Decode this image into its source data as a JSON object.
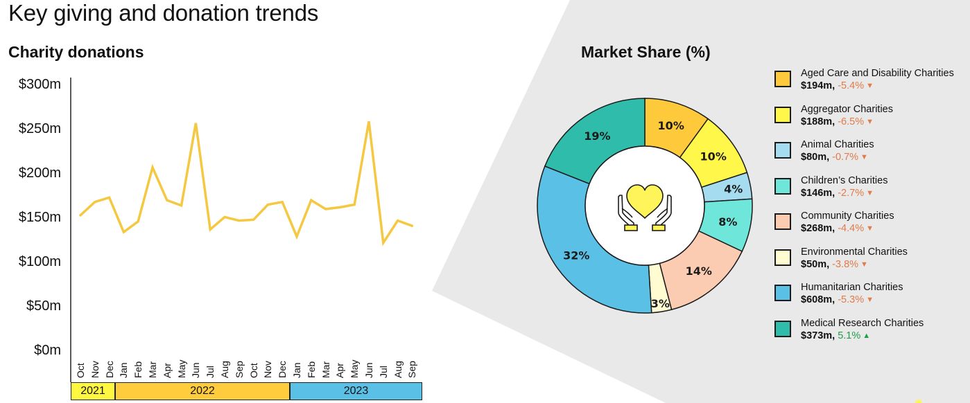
{
  "page": {
    "title": "Key giving and donation trends"
  },
  "line_section": {
    "title": "Charity donations",
    "y_ticks": [
      "$300m",
      "$250m",
      "$200m",
      "$150m",
      "$100m",
      "$50m",
      "$0m"
    ],
    "x_ticks": [
      "Oct",
      "Nov",
      "Dec",
      "Jan",
      "Feb",
      "Mar",
      "Apr",
      "May",
      "Jun",
      "Jul",
      "Aug",
      "Sep",
      "Oct",
      "Nov",
      "Dec",
      "Jan",
      "Feb",
      "Mar",
      "Apr",
      "May",
      "Jun",
      "Jul",
      "Aug",
      "Sep"
    ],
    "years": [
      {
        "label": "2021",
        "color": "#fff740"
      },
      {
        "label": "2022",
        "color": "#ffcc3d"
      },
      {
        "label": "2023",
        "color": "#5bc0e6"
      }
    ],
    "line_color": "#f5c842"
  },
  "market_section": {
    "title": "Market Share (%)",
    "center_icon": "hands-heart-icon",
    "legend": [
      {
        "name": "Aged Care and Disability Charities",
        "value": "$194m,",
        "change": "-5.4%",
        "direction": "down",
        "color": "#ffc93c"
      },
      {
        "name": "Aggregator Charities",
        "value": "$188m,",
        "change": "-6.5%",
        "direction": "down",
        "color": "#fff74a"
      },
      {
        "name": "Animal Charities",
        "value": "$80m,",
        "change": "-0.7%",
        "direction": "down",
        "color": "#a6dcf0"
      },
      {
        "name": "Children’s Charities",
        "value": "$146m,",
        "change": "-2.7%",
        "direction": "down",
        "color": "#6fe6da"
      },
      {
        "name": "Community Charities",
        "value": "$268m,",
        "change": "-4.4%",
        "direction": "down",
        "color": "#fbcbb2"
      },
      {
        "name": "Environmental Charities",
        "value": "$50m,",
        "change": "-3.8%",
        "direction": "down",
        "color": "#fffcd2"
      },
      {
        "name": "Humanitarian Charities",
        "value": "$608m,",
        "change": "-5.3%",
        "direction": "down",
        "color": "#5bc0e6"
      },
      {
        "name": "Medical Research Charities",
        "value": "$373m,",
        "change": "5.1%",
        "direction": "up",
        "color": "#2fbcab"
      }
    ],
    "arrows": {
      "down": "▼",
      "up": "▲"
    }
  },
  "chart_data": [
    {
      "type": "line",
      "title": "Charity donations",
      "xlabel": "",
      "ylabel": "",
      "ylim": [
        0,
        300
      ],
      "y_ticks": [
        0,
        50,
        100,
        150,
        200,
        250,
        300
      ],
      "y_tick_labels": [
        "$0m",
        "$50m",
        "$100m",
        "$150m",
        "$200m",
        "$250m",
        "$300m"
      ],
      "x": [
        "Oct 2021",
        "Nov 2021",
        "Dec 2021",
        "Jan 2022",
        "Feb 2022",
        "Mar 2022",
        "Apr 2022",
        "May 2022",
        "Jun 2022",
        "Jul 2022",
        "Aug 2022",
        "Sep 2022",
        "Oct 2022",
        "Nov 2022",
        "Dec 2022",
        "Jan 2023",
        "Feb 2023",
        "Mar 2023",
        "Apr 2023",
        "May 2023",
        "Jun 2023",
        "Jul 2023",
        "Aug 2023",
        "Sep 2023"
      ],
      "series": [
        {
          "name": "Charity donations ($m)",
          "color": "#f5c842",
          "values": [
            154,
            169,
            174,
            135,
            147,
            208,
            171,
            165,
            258,
            138,
            152,
            148,
            149,
            166,
            169,
            130,
            171,
            161,
            163,
            166,
            260,
            123,
            148,
            142
          ]
        }
      ],
      "grid": false,
      "legend": "none"
    },
    {
      "type": "pie",
      "subtype": "donut",
      "title": "Market Share (%)",
      "categories": [
        "Aged Care and Disability Charities",
        "Aggregator Charities",
        "Animal Charities",
        "Children’s Charities",
        "Community Charities",
        "Environmental Charities",
        "Humanitarian Charities",
        "Medical Research Charities"
      ],
      "values": [
        10,
        10,
        4,
        8,
        14,
        3,
        32,
        19
      ],
      "amounts": [
        "$194m",
        "$188m",
        "$80m",
        "$146m",
        "$268m",
        "$50m",
        "$608m",
        "$373m"
      ],
      "changes": [
        "-5.4%",
        "-6.5%",
        "-0.7%",
        "-2.7%",
        "-4.4%",
        "-3.8%",
        "-5.3%",
        "5.1%"
      ],
      "colors": [
        "#ffc93c",
        "#fff74a",
        "#a6dcf0",
        "#6fe6da",
        "#fbcbb2",
        "#fffcd2",
        "#5bc0e6",
        "#2fbcab"
      ],
      "legend_position": "right"
    }
  ]
}
